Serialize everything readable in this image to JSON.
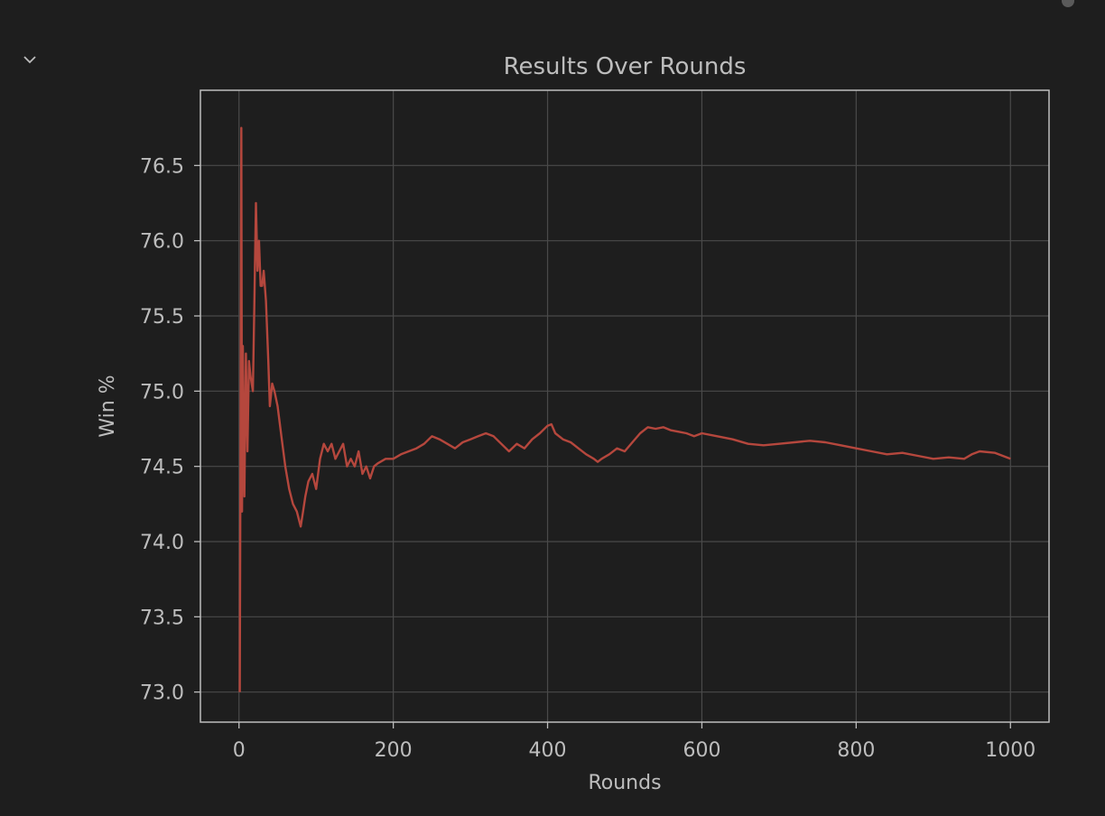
{
  "notebook": {
    "collapse_icon": "chevron-down-icon",
    "scroll_icon": "scrollbar-thumb"
  },
  "chart_data": {
    "type": "line",
    "title": "Results Over Rounds",
    "xlabel": "Rounds",
    "ylabel": "Win %",
    "xlim": [
      -50,
      1050
    ],
    "ylim": [
      72.8,
      77.0
    ],
    "xticks": [
      0,
      200,
      400,
      600,
      800,
      1000
    ],
    "xtick_labels": [
      "0",
      "200",
      "400",
      "600",
      "800",
      "1000"
    ],
    "yticks": [
      73.0,
      73.5,
      74.0,
      74.5,
      75.0,
      75.5,
      76.0,
      76.5
    ],
    "ytick_labels": [
      "73.0",
      "73.5",
      "74.0",
      "74.5",
      "75.0",
      "75.5",
      "76.0",
      "76.5"
    ],
    "grid": true,
    "colors": {
      "line": "#b5473d",
      "background": "#1e1e1e",
      "grid": "#4a4a4a",
      "frame": "#bdbdbd",
      "text": "#bdbdbd"
    },
    "series": [
      {
        "x": [
          1,
          2,
          3,
          4,
          5,
          7,
          9,
          11,
          13,
          15,
          18,
          20,
          22,
          24,
          26,
          28,
          30,
          32,
          35,
          38,
          40,
          43,
          46,
          50,
          55,
          60,
          65,
          70,
          75,
          80,
          83,
          86,
          90,
          95,
          100,
          105,
          110,
          115,
          120,
          125,
          130,
          135,
          140,
          145,
          150,
          155,
          160,
          165,
          170,
          175,
          180,
          190,
          200,
          210,
          220,
          230,
          240,
          250,
          260,
          270,
          280,
          290,
          300,
          310,
          320,
          330,
          340,
          350,
          360,
          370,
          380,
          390,
          400,
          405,
          410,
          420,
          430,
          440,
          450,
          460,
          465,
          470,
          480,
          490,
          500,
          510,
          520,
          530,
          540,
          550,
          560,
          570,
          580,
          590,
          600,
          620,
          640,
          660,
          680,
          700,
          720,
          740,
          760,
          780,
          800,
          820,
          840,
          860,
          880,
          900,
          920,
          940,
          950,
          960,
          980,
          1000
        ],
        "y": [
          73.0,
          74.6,
          76.75,
          74.2,
          75.3,
          74.3,
          75.25,
          74.6,
          75.2,
          75.1,
          75.0,
          75.6,
          76.25,
          75.8,
          76.0,
          75.7,
          75.7,
          75.8,
          75.6,
          75.2,
          74.9,
          75.05,
          75.0,
          74.9,
          74.7,
          74.5,
          74.35,
          74.25,
          74.2,
          74.1,
          74.2,
          74.3,
          74.4,
          74.45,
          74.35,
          74.55,
          74.65,
          74.6,
          74.65,
          74.55,
          74.6,
          74.65,
          74.5,
          74.55,
          74.5,
          74.6,
          74.45,
          74.5,
          74.42,
          74.5,
          74.52,
          74.55,
          74.55,
          74.58,
          74.6,
          74.62,
          74.65,
          74.7,
          74.68,
          74.65,
          74.62,
          74.66,
          74.68,
          74.7,
          74.72,
          74.7,
          74.65,
          74.6,
          74.65,
          74.62,
          74.68,
          74.72,
          74.77,
          74.78,
          74.72,
          74.68,
          74.66,
          74.62,
          74.58,
          74.55,
          74.53,
          74.55,
          74.58,
          74.62,
          74.6,
          74.66,
          74.72,
          74.76,
          74.75,
          74.76,
          74.74,
          74.73,
          74.72,
          74.7,
          74.72,
          74.7,
          74.68,
          74.65,
          74.64,
          74.65,
          74.66,
          74.67,
          74.66,
          74.64,
          74.62,
          74.6,
          74.58,
          74.59,
          74.57,
          74.55,
          74.56,
          74.55,
          74.58,
          74.6,
          74.59,
          74.55
        ]
      }
    ]
  }
}
